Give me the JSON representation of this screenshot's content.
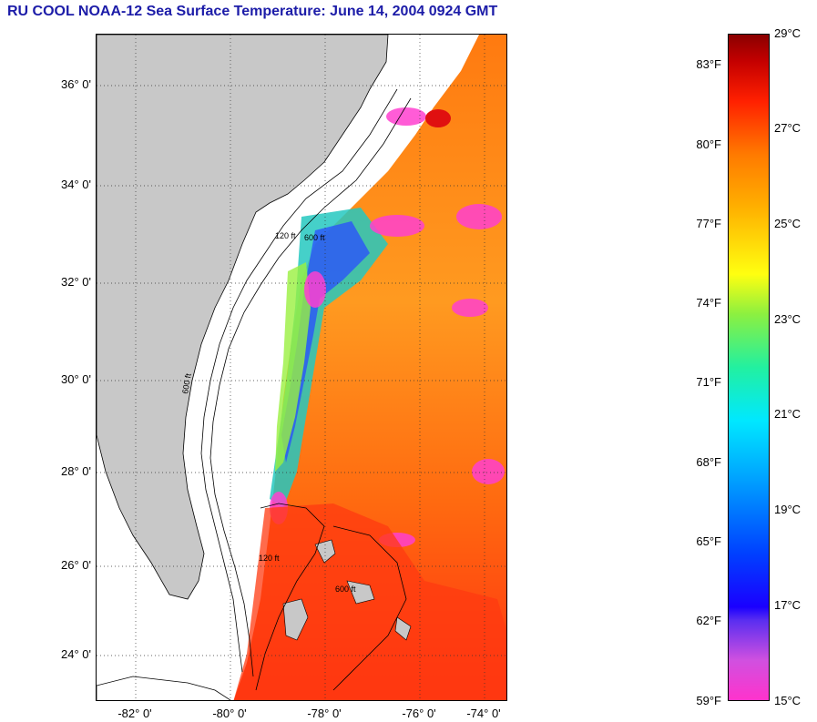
{
  "title": "RU COOL  NOAA-12  Sea Surface Temperature:  June 14, 2004 0924 GMT",
  "map": {
    "latitude_labels": [
      "36° 0'",
      "34° 0'",
      "32° 0'",
      "30° 0'",
      "28° 0'",
      "26° 0'",
      "24° 0'"
    ],
    "longitude_labels": [
      "-82° 0'",
      "-80° 0'",
      "-78° 0'",
      "-76° 0'",
      "-74° 0'"
    ],
    "contour_labels": [
      "120 ft",
      "600 ft"
    ],
    "colors": {
      "land": "#c8c8c8",
      "ocean_bg": "#ffffff",
      "contour": "#000000",
      "grid": "#555555"
    }
  },
  "colorbar": {
    "fahrenheit_labels": [
      "83°F",
      "80°F",
      "77°F",
      "74°F",
      "71°F",
      "68°F",
      "65°F",
      "62°F",
      "59°F"
    ],
    "celsius_labels": [
      "29°C",
      "27°C",
      "25°C",
      "23°C",
      "21°C",
      "19°C",
      "17°C",
      "15°C"
    ],
    "range_c": [
      15,
      29
    ],
    "colors": [
      "#ff33cc",
      "#5a2ef0",
      "#0040ff",
      "#00e8ff",
      "#8cf040",
      "#ffff10",
      "#ff7a00",
      "#ff2000",
      "#8a0000"
    ]
  }
}
